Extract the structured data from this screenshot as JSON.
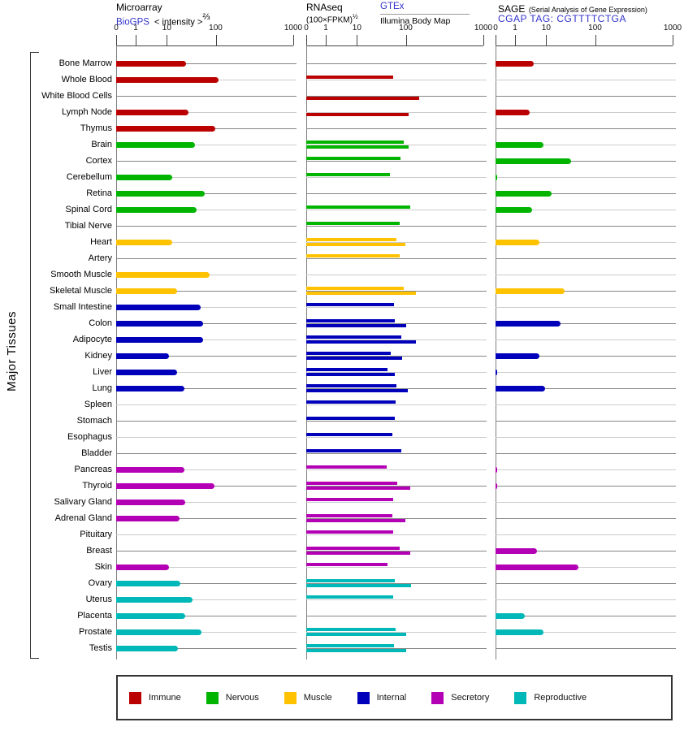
{
  "left_axis": {
    "label": "Major Tissues"
  },
  "panels": {
    "microarray": {
      "title": "Microarray",
      "link": "BioGPS",
      "measure": "< intensity >",
      "exponent": "⅔"
    },
    "rnaseq": {
      "title": "RNAseq",
      "measure": "(100×FPKM)",
      "exponent": "½",
      "source1": "GTEx",
      "source2": "Illumina Body Map"
    },
    "sage": {
      "title": "SAGE",
      "note": "(Serial Analysis of Gene Expression)",
      "tag": "CGAP TAG: CGTTTTCTGA"
    }
  },
  "axis": {
    "tick_labels": [
      "0",
      "1",
      "10",
      "100",
      "1000"
    ],
    "tick_values": [
      0,
      1,
      10,
      100,
      1000
    ]
  },
  "legend": {
    "items": [
      {
        "key": "immune",
        "label": "Immune",
        "color": "#bb0000"
      },
      {
        "key": "nervous",
        "label": "Nervous",
        "color": "#00b400"
      },
      {
        "key": "muscle",
        "label": "Muscle",
        "color": "#ffc200"
      },
      {
        "key": "internal",
        "label": "Internal",
        "color": "#0000bb"
      },
      {
        "key": "secretory",
        "label": "Secretory",
        "color": "#b400b4"
      },
      {
        "key": "reproductive",
        "label": "Reproductive",
        "color": "#00b8b8"
      }
    ]
  },
  "chart_data": {
    "type": "bar",
    "orientation": "horizontal",
    "scale": "nonlinear axis with ticks 0,1,10,100,1000 (tick fractions 0, 0.11, 0.286, 0.562, 1.0)",
    "panels": [
      {
        "name": "Microarray",
        "series": [
          "microarray"
        ]
      },
      {
        "name": "RNAseq",
        "series": [
          "gtex",
          "illumina"
        ]
      },
      {
        "name": "SAGE",
        "series": [
          "sage"
        ]
      }
    ],
    "rows": [
      {
        "tissue": "Bone Marrow",
        "category": "immune",
        "microarray": 25,
        "gtex": null,
        "illumina": null,
        "sage": 4
      },
      {
        "tissue": "Whole Blood",
        "category": "immune",
        "microarray": 110,
        "gtex": 56,
        "illumina": null,
        "sage": null
      },
      {
        "tissue": "White Blood Cells",
        "category": "immune",
        "microarray": null,
        "gtex": null,
        "illumina": 150,
        "sage": null
      },
      {
        "tissue": "Lymph Node",
        "category": "immune",
        "microarray": 28,
        "gtex": null,
        "illumina": 110,
        "sage": 3
      },
      {
        "tissue": "Thymus",
        "category": "immune",
        "microarray": 97,
        "gtex": null,
        "illumina": null,
        "sage": null
      },
      {
        "tissue": "Brain",
        "category": "nervous",
        "microarray": 37,
        "gtex": 90,
        "illumina": 110,
        "sage": 8
      },
      {
        "tissue": "Cortex",
        "category": "nervous",
        "microarray": null,
        "gtex": 77,
        "illumina": null,
        "sage": 32
      },
      {
        "tissue": "Cerebellum",
        "category": "nervous",
        "microarray": 13,
        "gtex": 48,
        "illumina": null,
        "sage": 0.1
      },
      {
        "tissue": "Retina",
        "category": "nervous",
        "microarray": 60,
        "gtex": null,
        "illumina": null,
        "sage": 13
      },
      {
        "tissue": "Spinal Cord",
        "category": "nervous",
        "microarray": 40,
        "gtex": 115,
        "illumina": null,
        "sage": 3.5
      },
      {
        "tissue": "Tibial Nerve",
        "category": "nervous",
        "microarray": null,
        "gtex": 74,
        "illumina": null,
        "sage": null
      },
      {
        "tissue": "Heart",
        "category": "muscle",
        "microarray": 13,
        "gtex": 65,
        "illumina": 98,
        "sage": 6
      },
      {
        "tissue": "Artery",
        "category": "muscle",
        "microarray": null,
        "gtex": 74,
        "illumina": null,
        "sage": null
      },
      {
        "tissue": "Smooth Muscle",
        "category": "muscle",
        "microarray": 75,
        "gtex": null,
        "illumina": null,
        "sage": null
      },
      {
        "tissue": "Skeletal Muscle",
        "category": "muscle",
        "microarray": 16,
        "gtex": 90,
        "illumina": 135,
        "sage": 24
      },
      {
        "tissue": "Small Intestine",
        "category": "internal",
        "microarray": 50,
        "gtex": 58,
        "illumina": null,
        "sage": null
      },
      {
        "tissue": "Colon",
        "category": "internal",
        "microarray": 55,
        "gtex": 60,
        "illumina": 100,
        "sage": 20
      },
      {
        "tissue": "Adipocyte",
        "category": "internal",
        "microarray": 55,
        "gtex": 80,
        "illumina": 135,
        "sage": null
      },
      {
        "tissue": "Kidney",
        "category": "internal",
        "microarray": 11,
        "gtex": 50,
        "illumina": 83,
        "sage": 6
      },
      {
        "tissue": "Liver",
        "category": "internal",
        "microarray": 16,
        "gtex": 42,
        "illumina": 60,
        "sage": 0.1
      },
      {
        "tissue": "Lung",
        "category": "internal",
        "microarray": 23,
        "gtex": 65,
        "illumina": 105,
        "sage": 9
      },
      {
        "tissue": "Spleen",
        "category": "internal",
        "microarray": null,
        "gtex": 62,
        "illumina": null,
        "sage": null
      },
      {
        "tissue": "Stomach",
        "category": "internal",
        "microarray": null,
        "gtex": 60,
        "illumina": null,
        "sage": null
      },
      {
        "tissue": "Esophagus",
        "category": "internal",
        "microarray": null,
        "gtex": 54,
        "illumina": null,
        "sage": null
      },
      {
        "tissue": "Bladder",
        "category": "internal",
        "microarray": null,
        "gtex": 80,
        "illumina": null,
        "sage": null
      },
      {
        "tissue": "Pancreas",
        "category": "secretory",
        "microarray": 23,
        "gtex": 40,
        "illumina": null,
        "sage": 0.1
      },
      {
        "tissue": "Thyroid",
        "category": "secretory",
        "microarray": 95,
        "gtex": 68,
        "illumina": 115,
        "sage": 0.1
      },
      {
        "tissue": "Salivary Gland",
        "category": "secretory",
        "microarray": 24,
        "gtex": 56,
        "illumina": null,
        "sage": null
      },
      {
        "tissue": "Adrenal Gland",
        "category": "secretory",
        "microarray": 18,
        "gtex": 54,
        "illumina": 98,
        "sage": null
      },
      {
        "tissue": "Pituitary",
        "category": "secretory",
        "microarray": null,
        "gtex": 56,
        "illumina": null,
        "sage": null
      },
      {
        "tissue": "Breast",
        "category": "secretory",
        "microarray": null,
        "gtex": 74,
        "illumina": 115,
        "sage": 5
      },
      {
        "tissue": "Skin",
        "category": "secretory",
        "microarray": 11,
        "gtex": 42,
        "illumina": null,
        "sage": 45
      },
      {
        "tissue": "Ovary",
        "category": "reproductive",
        "microarray": 19,
        "gtex": 60,
        "illumina": 118,
        "sage": null
      },
      {
        "tissue": "Uterus",
        "category": "reproductive",
        "microarray": 34,
        "gtex": 56,
        "illumina": null,
        "sage": null
      },
      {
        "tissue": "Placenta",
        "category": "reproductive",
        "microarray": 24,
        "gtex": null,
        "illumina": null,
        "sage": 2
      },
      {
        "tissue": "Prostate",
        "category": "reproductive",
        "microarray": 52,
        "gtex": 62,
        "illumina": 100,
        "sage": 8
      },
      {
        "tissue": "Testis",
        "category": "reproductive",
        "microarray": 17,
        "gtex": 57,
        "illumina": 100,
        "sage": null
      }
    ]
  }
}
